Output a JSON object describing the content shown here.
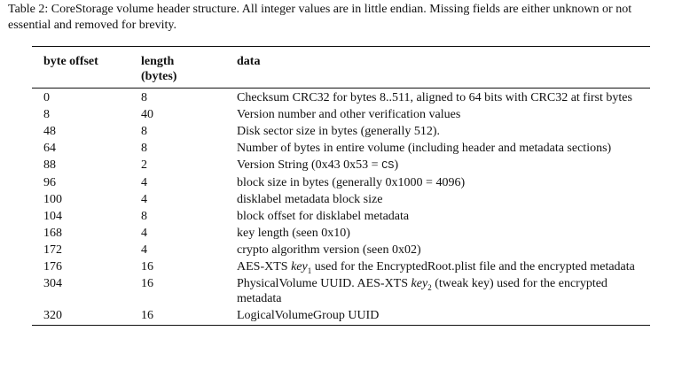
{
  "caption": "Table 2: CoreStorage volume header structure. All integer values are in little endian. Missing fields are either unknown or not essential and removed for brevity.",
  "headers": {
    "offset": "byte offset",
    "length_line1": "length",
    "length_line2": "(bytes)",
    "data": "data"
  },
  "rows": [
    {
      "offset": "0",
      "length": "8",
      "data": "Checksum CRC32 for bytes 8..511, aligned to 64 bits with CRC32 at first bytes"
    },
    {
      "offset": "8",
      "length": "40",
      "data": "Version number and other verification values"
    },
    {
      "offset": "48",
      "length": "8",
      "data": "Disk sector size in bytes (generally 512)."
    },
    {
      "offset": "64",
      "length": "8",
      "data": "Number of bytes in entire volume (including header and metadata sections)"
    },
    {
      "offset": "88",
      "length": "2",
      "data_pre": "Version String (0x43 0x53 = ",
      "data_code": "CS",
      "data_post": ")"
    },
    {
      "offset": "96",
      "length": "4",
      "data": "block size in bytes (generally 0x1000 = 4096)"
    },
    {
      "offset": "100",
      "length": "4",
      "data": "disklabel metadata block size"
    },
    {
      "offset": "104",
      "length": "8",
      "data": "block offset for disklabel metadata"
    },
    {
      "offset": "168",
      "length": "4",
      "data": "key length (seen 0x10)"
    },
    {
      "offset": "172",
      "length": "4",
      "data": "crypto algorithm version (seen 0x02)"
    },
    {
      "offset": "176",
      "length": "16",
      "data_pre": "AES-XTS ",
      "data_italic": "key",
      "data_sub": "1",
      "data_post": " used for the EncryptedRoot.plist file and the encrypted metadata"
    },
    {
      "offset": "304",
      "length": "16",
      "data_pre": "PhysicalVolume UUID. AES-XTS ",
      "data_italic": "key",
      "data_sub": "2",
      "data_post": " (tweak key) used for the encrypted metadata"
    },
    {
      "offset": "320",
      "length": "16",
      "data": "LogicalVolumeGroup UUID"
    }
  ]
}
